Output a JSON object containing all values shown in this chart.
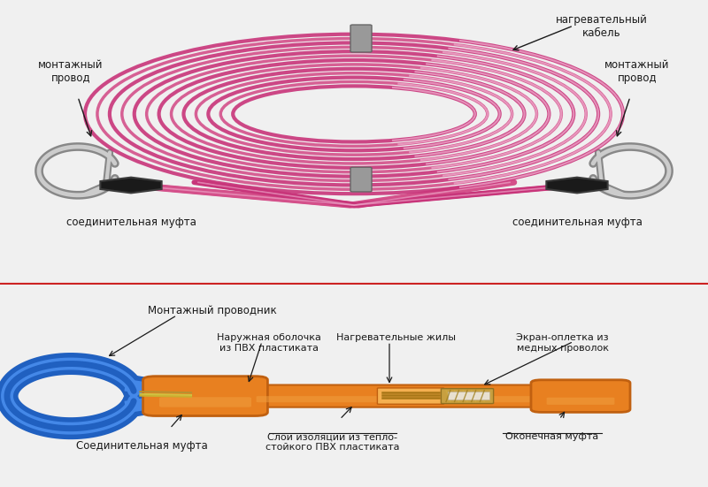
{
  "bg_color": "#f0f0f0",
  "panel_bg": "#f0f0f0",
  "divider_color": "#cc2222",
  "coil_color_outer": "#c8357a",
  "coil_color_mid": "#d4508a",
  "coil_color_inner": "#e080b0",
  "coil_highlight": "#f0b0d0",
  "wire_gray_dark": "#888888",
  "wire_gray_light": "#cccccc",
  "connector_black": "#1a1a1a",
  "connector_edge": "#3a3a3a",
  "cable_orange": "#e88020",
  "cable_orange_dark": "#c06010",
  "cable_orange_light": "#f0a040",
  "cable_blue": "#2060c0",
  "cable_blue_light": "#4488e8",
  "text_color": "#1a1a1a",
  "label_fs": 8.5,
  "top_labels": {
    "nagrev_kabel": "нагревательный\nкабель",
    "montazh_left": "монтажный\nпровод",
    "montazh_right": "монтажный\nпровод",
    "soed_left": "соединительная муфта",
    "soed_right": "соединительная муфта"
  },
  "bottom_labels": {
    "montazh_provodnik": "Монтажный проводник",
    "naruzh_obolochka": "Наружная оболочка\nиз ПВХ пластиката",
    "nagreva_zhily": "Нагревательные жилы",
    "ekran_opletka": "Экран-оплетка из\nмедных проволок",
    "soed_mufta": "Соединительная муфта",
    "sloi_izolyacii": "Слои изоляции из тепло-\nстойкого ПВХ пластиката",
    "okonechnaya": "Оконечная муфта"
  }
}
